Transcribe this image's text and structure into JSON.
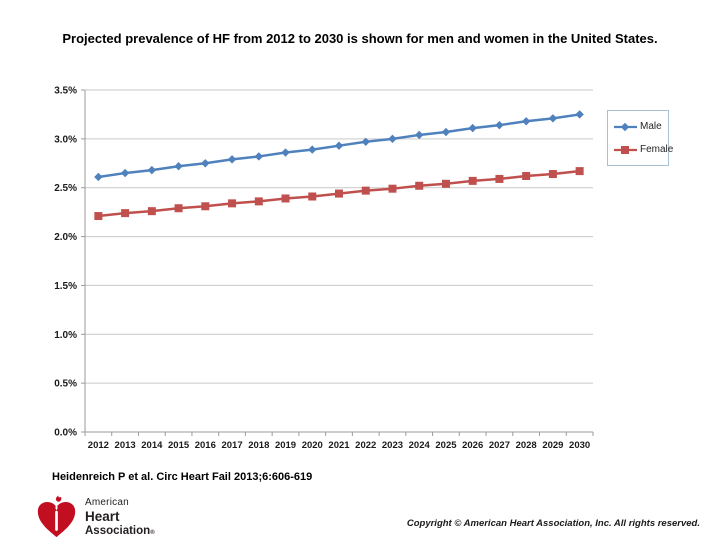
{
  "slide": {
    "title": "Projected prevalence of HF from 2012 to 2030 is shown for men and women in the United States.",
    "citation": "Heidenreich P et al. Circ Heart Fail 2013;6:606-619",
    "copyright": "Copyright © American Heart Association, Inc. All rights reserved."
  },
  "logo": {
    "line1": "American",
    "line2": "Heart",
    "line3": "Association",
    "reg_mark": "®",
    "heart_color": "#c10e21"
  },
  "chart_data": {
    "type": "line",
    "title": "",
    "xlabel": "",
    "ylabel": "",
    "x": [
      "2012",
      "2013",
      "2014",
      "2015",
      "2016",
      "2017",
      "2018",
      "2019",
      "2020",
      "2021",
      "2022",
      "2023",
      "2024",
      "2025",
      "2026",
      "2027",
      "2028",
      "2029",
      "2030"
    ],
    "series": [
      {
        "name": "Male",
        "color": "#4f81bd",
        "marker": "diamond",
        "values": [
          2.61,
          2.65,
          2.68,
          2.72,
          2.75,
          2.79,
          2.82,
          2.86,
          2.89,
          2.93,
          2.97,
          3.0,
          3.04,
          3.07,
          3.11,
          3.14,
          3.18,
          3.21,
          3.25
        ]
      },
      {
        "name": "Female",
        "color": "#c0504d",
        "marker": "square",
        "values": [
          2.21,
          2.24,
          2.26,
          2.29,
          2.31,
          2.34,
          2.36,
          2.39,
          2.41,
          2.44,
          2.47,
          2.49,
          2.52,
          2.54,
          2.57,
          2.59,
          2.62,
          2.64,
          2.67
        ]
      }
    ],
    "ylim": [
      0,
      3.5
    ],
    "ytick_step": 0.5,
    "ytick_labels": [
      "0.0%",
      "0.5%",
      "1.0%",
      "1.5%",
      "2.0%",
      "2.5%",
      "3.0%",
      "3.5%"
    ],
    "grid": "horizontal",
    "legend_position": "right",
    "gridline_color": "#c9c9c9",
    "axis_color": "#9b9b9b",
    "tick_label_color": "#1a1a1a"
  }
}
